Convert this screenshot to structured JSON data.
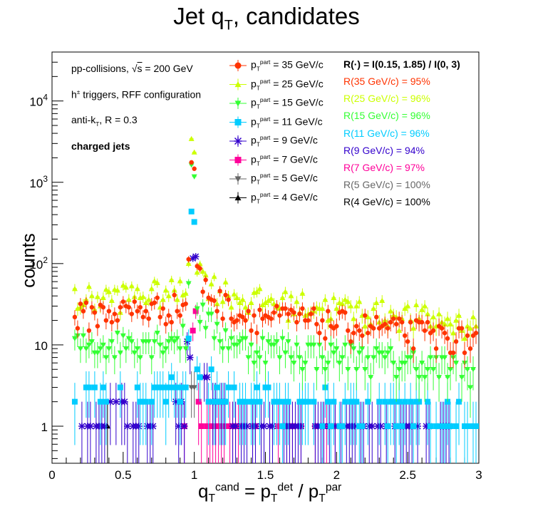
{
  "title_html": "Jet q<sub>T</sub>, candidates",
  "xlabel_html": "q<sub>T</sub><sup>cand</sup> = p<sub>T</sub><sup>det</sup> / p<sub>T</sub><sup>par</sup>",
  "ylabel": "counts",
  "info": {
    "line1_html": "pp-collisions, &radic;<span style=\"text-decoration:overline\">s</span> = 200 GeV",
    "line2_html": "h<sup>&plusmn;</sup> triggers, RFF configuration",
    "line3_html": "anti-k<sub>T</sub>, R = 0.3",
    "line4": "charged jets"
  },
  "ratio_header": "R(·) = I(0.15, 1.85) / I(0, 3)",
  "colors": {
    "s35": "#ff3300",
    "s25": "#ccff00",
    "s15": "#33ff33",
    "s11": "#00ccff",
    "s9": "#3300cc",
    "s7": "#ff0099",
    "s5": "#666666",
    "s4": "#000000"
  },
  "chart_data": {
    "type": "scatter",
    "xlim": [
      0,
      3
    ],
    "ylim": [
      0.35,
      40000
    ],
    "yscale": "log",
    "x_ticks": [
      "0",
      "0.5",
      "1",
      "1.5",
      "2",
      "2.5",
      "3"
    ],
    "y_ticks": [
      "1",
      "10",
      "10^2",
      "10^3",
      "10^4"
    ],
    "series": [
      {
        "name": "35 GeV/c",
        "key": "s35",
        "marker": "circle",
        "ratio": "R(35 GeV/c) = 95%"
      },
      {
        "name": "25 GeV/c",
        "key": "s25",
        "marker": "triangle-up",
        "ratio": "R(25 GeV/c) = 96%"
      },
      {
        "name": "15 GeV/c",
        "key": "s15",
        "marker": "triangle-down",
        "ratio": "R(15 GeV/c) = 96%"
      },
      {
        "name": "11 GeV/c",
        "key": "s11",
        "marker": "square",
        "ratio": "R(11 GeV/c) = 96%"
      },
      {
        "name": "9 GeV/c",
        "key": "s9",
        "marker": "star",
        "ratio": "R(9 GeV/c) = 94%"
      },
      {
        "name": "7 GeV/c",
        "key": "s7",
        "marker": "square",
        "ratio": "R(7 GeV/c) = 97%"
      },
      {
        "name": "5 GeV/c",
        "key": "s5",
        "marker": "triangle-down",
        "ratio": "R(5 GeV/c) = 100%"
      },
      {
        "name": "4 GeV/c",
        "key": "s4",
        "marker": "triangle-up",
        "ratio": "R(4 GeV/c) = 100%"
      }
    ]
  }
}
